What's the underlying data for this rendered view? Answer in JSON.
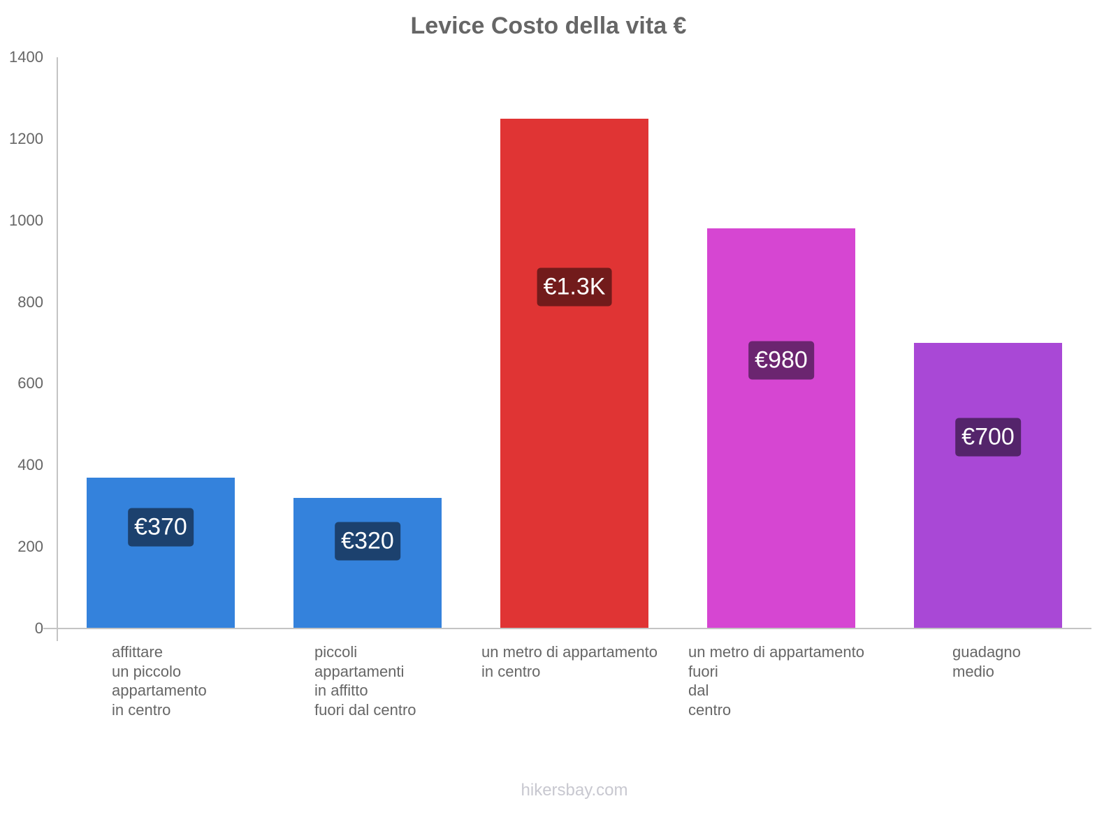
{
  "chart_data": {
    "type": "bar",
    "title": "Levice Costo della vita €",
    "xlabel": "",
    "ylabel": "",
    "ylim": [
      0,
      1400
    ],
    "yticks": [
      0,
      200,
      400,
      600,
      800,
      1000,
      1200,
      1400
    ],
    "grid": false,
    "legend": null,
    "categories": [
      "affittare un piccolo appartamento in centro",
      "piccoli appartamenti in affitto fuori dal centro",
      "un metro di appartamento in centro",
      "un metro di appartamento fuori dal centro",
      "guadagno medio"
    ],
    "category_lines": [
      [
        "affittare",
        "un piccolo",
        "appartamento",
        "in centro"
      ],
      [
        "piccoli",
        "appartamenti",
        "in affitto",
        "fuori dal centro"
      ],
      [
        "un metro di appartamento",
        "in centro"
      ],
      [
        "un metro di appartamento",
        "fuori",
        "dal",
        "centro"
      ],
      [
        "guadagno",
        "medio"
      ]
    ],
    "values": [
      370,
      320,
      1250,
      980,
      700
    ],
    "data_labels": [
      "€370",
      "€320",
      "€1.3K",
      "€980",
      "€700"
    ],
    "bar_colors": [
      "#3482dc",
      "#3482dc",
      "#e03434",
      "#d646d2",
      "#a948d6"
    ],
    "label_bg_colors": [
      "#1c416e",
      "#1c416e",
      "#721b1b",
      "#6b2570",
      "#54246b"
    ]
  },
  "footer": {
    "watermark": "hikersbay.com"
  }
}
